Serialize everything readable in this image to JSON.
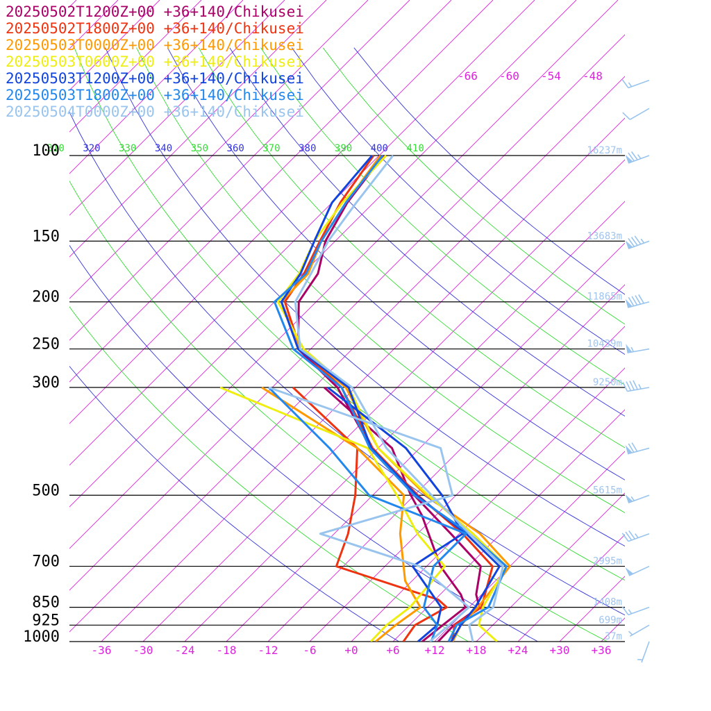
{
  "chart_data": {
    "type": "line",
    "title": "",
    "xlabel": "",
    "ylabel": "",
    "x_range": [
      -40,
      40
    ],
    "pressure_range": [
      1000,
      100
    ],
    "pressure_ticks": [
      {
        "p": 100,
        "label": "100",
        "height": "16237m"
      },
      {
        "p": 150,
        "label": "150",
        "height": "13683m"
      },
      {
        "p": 200,
        "label": "200",
        "height": "11865m"
      },
      {
        "p": 250,
        "label": "250",
        "height": "10439m"
      },
      {
        "p": 300,
        "label": "300",
        "height": "9250m"
      },
      {
        "p": 500,
        "label": "500",
        "height": "5615m"
      },
      {
        "p": 700,
        "label": "700",
        "height": "2995m"
      },
      {
        "p": 850,
        "label": "850",
        "height": "1408m"
      },
      {
        "p": 925,
        "label": "925",
        "height": "699m"
      },
      {
        "p": 1000,
        "label": "1000",
        "height": "37m"
      }
    ],
    "temp_ticks": [
      {
        "t": -36,
        "label": "-36"
      },
      {
        "t": -30,
        "label": "-30"
      },
      {
        "t": -24,
        "label": "-24"
      },
      {
        "t": -18,
        "label": "-18"
      },
      {
        "t": -12,
        "label": "-12"
      },
      {
        "t": -6,
        "label": "-6"
      },
      {
        "t": 0,
        "label": "+0"
      },
      {
        "t": 6,
        "label": "+6"
      },
      {
        "t": 12,
        "label": "+12"
      },
      {
        "t": 18,
        "label": "+18"
      },
      {
        "t": 24,
        "label": "+24"
      },
      {
        "t": 30,
        "label": "+30"
      },
      {
        "t": 36,
        "label": "+36"
      }
    ],
    "top_isotherm_labels": [
      {
        "t": -66,
        "label": "-66"
      },
      {
        "t": -60,
        "label": "-60"
      },
      {
        "t": -54,
        "label": "-54"
      },
      {
        "t": -48,
        "label": "-48"
      }
    ],
    "theta_labels": [
      {
        "theta": 310,
        "label": "310"
      },
      {
        "theta": 320,
        "label": "320"
      },
      {
        "theta": 330,
        "label": "330"
      },
      {
        "theta": 340,
        "label": "340"
      },
      {
        "theta": 350,
        "label": "350"
      },
      {
        "theta": 360,
        "label": "360"
      },
      {
        "theta": 370,
        "label": "370"
      },
      {
        "theta": 380,
        "label": "380"
      },
      {
        "theta": 390,
        "label": "390"
      },
      {
        "theta": 400,
        "label": "400"
      },
      {
        "theta": 410,
        "label": "410"
      }
    ],
    "colors": {
      "isotherm": "#dd22dd",
      "theta_a": "#3333dd",
      "theta_b": "#33dd33",
      "isobar": "#000000",
      "height_label": "#a0c4ee",
      "wind_barb": "#99c4ee"
    },
    "series": [
      {
        "name": "20250502T1200Z+00 +36+140/Chikusei",
        "color": "#aa0066",
        "temp": [
          [
            1000,
            12.5
          ],
          [
            925,
            12.4
          ],
          [
            850,
            13.5
          ],
          [
            800,
            11.2
          ],
          [
            700,
            7.8
          ],
          [
            600,
            -1.2
          ],
          [
            500,
            -12
          ],
          [
            400,
            -25
          ],
          [
            300,
            -38.6
          ],
          [
            250,
            -49.8
          ],
          [
            200,
            -56.5
          ],
          [
            175,
            -57.8
          ],
          [
            150,
            -61.4
          ],
          [
            125,
            -63.8
          ],
          [
            100,
            -65.4
          ]
        ],
        "dew": [
          [
            1000,
            10.2
          ],
          [
            925,
            10.8
          ],
          [
            850,
            11.5
          ],
          [
            800,
            9
          ],
          [
            700,
            2
          ],
          [
            550,
            -8
          ],
          [
            500,
            -12.5
          ],
          [
            400,
            -22
          ],
          [
            300,
            -40.5
          ]
        ]
      },
      {
        "name": "20250502T1800Z+00 +36+140/Chikusei",
        "color": "#ee3311",
        "temp": [
          [
            1000,
            14.5
          ],
          [
            925,
            12.5
          ],
          [
            850,
            13.8
          ],
          [
            700,
            9.5
          ],
          [
            600,
            0.5
          ],
          [
            500,
            -11.5
          ],
          [
            400,
            -24.8
          ],
          [
            300,
            -38
          ],
          [
            250,
            -49.5
          ],
          [
            200,
            -58.5
          ],
          [
            175,
            -59.8
          ],
          [
            150,
            -62.2
          ],
          [
            125,
            -64.8
          ],
          [
            100,
            -66.8
          ]
        ],
        "dew": [
          [
            1000,
            7.5
          ],
          [
            925,
            6.8
          ],
          [
            850,
            8.8
          ],
          [
            820,
            6.5
          ],
          [
            700,
            -13
          ],
          [
            600,
            -16
          ],
          [
            500,
            -20.5
          ],
          [
            400,
            -27
          ],
          [
            300,
            -45
          ]
        ]
      },
      {
        "name": "20250503T0000Z+00 +36+140/Chikusei",
        "color": "#ff9900",
        "temp": [
          [
            1000,
            14.6
          ],
          [
            925,
            13.4
          ],
          [
            850,
            13.3
          ],
          [
            700,
            12
          ],
          [
            600,
            3
          ],
          [
            500,
            -10.3
          ],
          [
            400,
            -24
          ],
          [
            300,
            -37.4
          ],
          [
            250,
            -49.5
          ],
          [
            200,
            -59
          ],
          [
            175,
            -59.2
          ],
          [
            150,
            -62
          ],
          [
            125,
            -64
          ],
          [
            100,
            -65.8
          ]
        ],
        "dew": [
          [
            1000,
            3.5
          ],
          [
            925,
            4
          ],
          [
            850,
            5
          ],
          [
            750,
            -1
          ],
          [
            600,
            -8.5
          ],
          [
            500,
            -13.5
          ],
          [
            400,
            -27
          ],
          [
            300,
            -49.5
          ]
        ]
      },
      {
        "name": "20250503T0600Z+00 +36+140/Chikusei",
        "color": "#eeee11",
        "temp": [
          [
            1000,
            21
          ],
          [
            925,
            16
          ],
          [
            850,
            14
          ],
          [
            700,
            11.5
          ],
          [
            600,
            2
          ],
          [
            500,
            -10
          ],
          [
            400,
            -24
          ],
          [
            300,
            -37
          ],
          [
            250,
            -49
          ],
          [
            200,
            -59.5
          ],
          [
            175,
            -60.5
          ],
          [
            150,
            -63
          ],
          [
            125,
            -64.5
          ],
          [
            100,
            -65
          ]
        ],
        "dew": [
          [
            1000,
            2.8
          ],
          [
            925,
            2.7
          ],
          [
            850,
            3.5
          ],
          [
            700,
            2.6
          ],
          [
            600,
            -6
          ],
          [
            500,
            -14.5
          ],
          [
            400,
            -25.5
          ],
          [
            300,
            -55.5
          ]
        ]
      },
      {
        "name": "20250503T1200Z+00 +36+140/Chikusei",
        "color": "#1144dd",
        "temp": [
          [
            1000,
            14.4
          ],
          [
            925,
            13.4
          ],
          [
            850,
            12.9
          ],
          [
            700,
            10.5
          ],
          [
            600,
            1
          ],
          [
            500,
            -11.7
          ],
          [
            400,
            -25
          ],
          [
            300,
            -37
          ],
          [
            250,
            -49.8
          ],
          [
            200,
            -59
          ],
          [
            175,
            -60.3
          ],
          [
            150,
            -63
          ],
          [
            125,
            -66
          ],
          [
            100,
            -67
          ]
        ],
        "dew": [
          [
            1000,
            9.6
          ],
          [
            925,
            10
          ],
          [
            850,
            8
          ],
          [
            700,
            -2
          ],
          [
            600,
            0.5
          ],
          [
            500,
            -8
          ],
          [
            400,
            -20
          ],
          [
            300,
            -40
          ]
        ]
      },
      {
        "name": "20250503T1800Z+00 +36+140/Chikusei",
        "color": "#2288ee",
        "temp": [
          [
            1000,
            14
          ],
          [
            925,
            12.8
          ],
          [
            850,
            14.8
          ],
          [
            700,
            11.5
          ],
          [
            600,
            1.5
          ],
          [
            500,
            -12
          ],
          [
            400,
            -25.2
          ],
          [
            300,
            -38
          ],
          [
            250,
            -50.5
          ],
          [
            200,
            -60
          ],
          [
            175,
            -59.5
          ],
          [
            150,
            -62
          ],
          [
            125,
            -64
          ],
          [
            100,
            -65.5
          ]
        ],
        "dew": [
          [
            1000,
            11.5
          ],
          [
            925,
            10
          ],
          [
            850,
            5.5
          ],
          [
            700,
            1
          ],
          [
            600,
            1
          ],
          [
            500,
            -18.5
          ],
          [
            400,
            -31
          ],
          [
            300,
            -48.5
          ]
        ]
      },
      {
        "name": "20250504T0000Z+00 +36+140/Chikusei",
        "color": "#99c4ee",
        "temp": [
          [
            1000,
            17.5
          ],
          [
            925,
            14.6
          ],
          [
            850,
            15.5
          ],
          [
            700,
            11
          ],
          [
            600,
            1.5
          ],
          [
            500,
            -9.5
          ],
          [
            400,
            -22.8
          ],
          [
            300,
            -36.5
          ],
          [
            250,
            -49.5
          ],
          [
            200,
            -57
          ],
          [
            175,
            -58.8
          ],
          [
            150,
            -61
          ],
          [
            125,
            -62.5
          ],
          [
            100,
            -64
          ]
        ],
        "dew": [
          [
            1000,
            11.3
          ],
          [
            925,
            11.7
          ],
          [
            850,
            12
          ],
          [
            700,
            -1
          ],
          [
            600,
            -20
          ],
          [
            500,
            -6.5
          ],
          [
            400,
            -15
          ],
          [
            300,
            -48.5
          ]
        ]
      }
    ],
    "wind_barbs": [
      {
        "p": 70,
        "direction": 250,
        "speed": 15
      },
      {
        "p": 80,
        "direction": 240,
        "speed": 10
      },
      {
        "p": 100,
        "direction": 250,
        "speed": 75
      },
      {
        "p": 150,
        "direction": 250,
        "speed": 85
      },
      {
        "p": 200,
        "direction": 255,
        "speed": 90
      },
      {
        "p": 250,
        "direction": 260,
        "speed": 55
      },
      {
        "p": 300,
        "direction": 260,
        "speed": 45
      },
      {
        "p": 400,
        "direction": 255,
        "speed": 70
      },
      {
        "p": 500,
        "direction": 250,
        "speed": 55
      },
      {
        "p": 600,
        "direction": 250,
        "speed": 35
      },
      {
        "p": 700,
        "direction": 245,
        "speed": 50
      },
      {
        "p": 850,
        "direction": 250,
        "speed": 15
      },
      {
        "p": 925,
        "direction": 240,
        "speed": 5
      },
      {
        "p": 1000,
        "direction": 200,
        "speed": 5
      }
    ]
  }
}
